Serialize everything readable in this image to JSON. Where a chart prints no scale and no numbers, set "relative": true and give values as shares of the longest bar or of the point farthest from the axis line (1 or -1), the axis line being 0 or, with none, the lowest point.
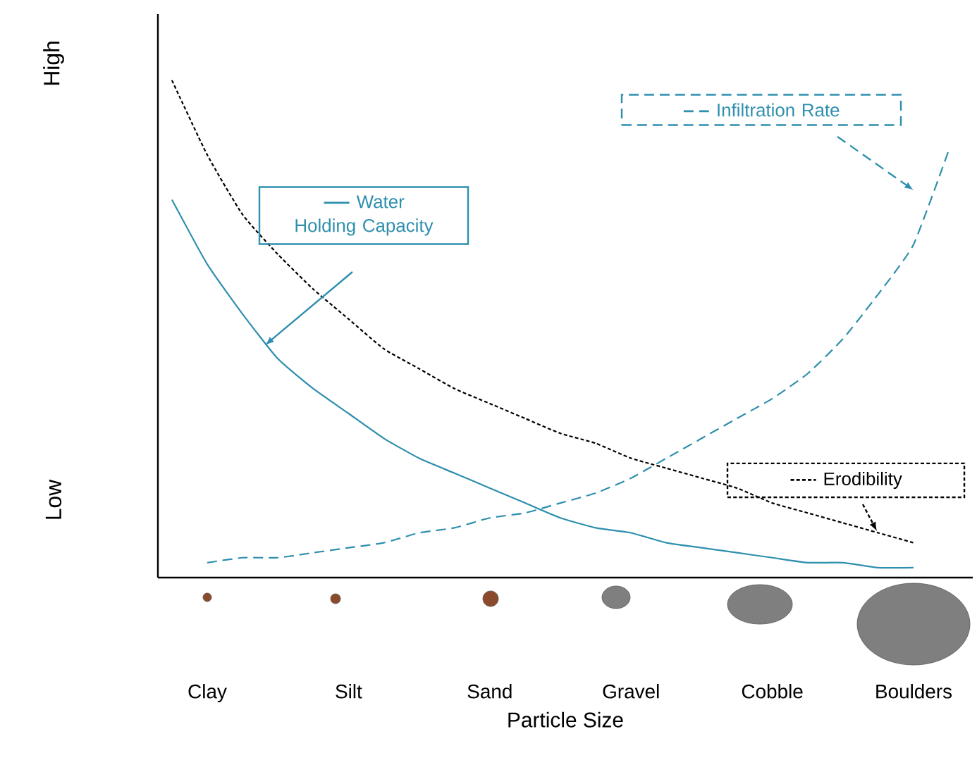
{
  "chart_data": {
    "type": "line",
    "relative": true,
    "xlabel": "Particle Size",
    "categories": [
      null,
      "Clay",
      null,
      null,
      null,
      "Silt",
      null,
      null,
      null,
      "Sand",
      null,
      null,
      null,
      "Gravel",
      null,
      null,
      null,
      "Cobble",
      null,
      null,
      null,
      "Boulders",
      null
    ],
    "series": [
      {
        "name": "Water Holding Capacity",
        "color": "#2e8fae",
        "line_style": "solid",
        "values": [
          0.76,
          0.63,
          0.53,
          0.44,
          0.38,
          0.33,
          0.28,
          0.24,
          0.21,
          0.18,
          0.15,
          0.12,
          0.1,
          0.09,
          0.07,
          0.06,
          0.05,
          0.04,
          0.03,
          0.03,
          0.02,
          0.02,
          null
        ]
      },
      {
        "name": "Erodibility",
        "color": "#000000",
        "line_style": "dotted",
        "values": [
          1.0,
          0.85,
          0.73,
          0.65,
          0.58,
          0.52,
          0.46,
          0.42,
          0.38,
          0.35,
          0.32,
          0.29,
          0.27,
          0.24,
          0.22,
          0.2,
          0.18,
          0.15,
          0.13,
          0.11,
          0.09,
          0.07,
          null
        ]
      },
      {
        "name": "Infiltration Rate",
        "color": "#2e8fae",
        "line_style": "dashed",
        "values": [
          null,
          0.03,
          0.04,
          0.04,
          0.05,
          0.06,
          0.07,
          0.09,
          0.1,
          0.12,
          0.13,
          0.15,
          0.17,
          0.2,
          0.24,
          0.28,
          0.32,
          0.36,
          0.41,
          0.48,
          0.57,
          0.67,
          0.86
        ]
      }
    ],
    "legend": "top",
    "annotations": [
      "High",
      "Low"
    ]
  }
}
